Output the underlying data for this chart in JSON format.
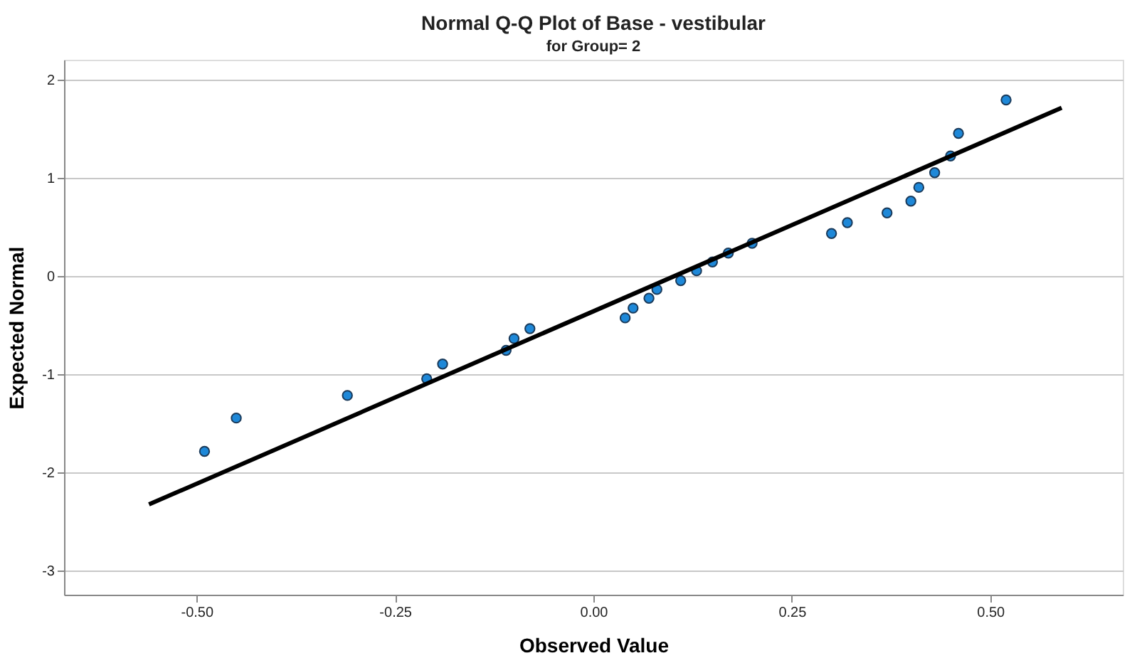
{
  "chart_data": {
    "type": "scatter",
    "title": "Normal Q-Q Plot of Base - vestibular",
    "subtitle": "for Group= 2",
    "xlabel": "Observed Value",
    "ylabel": "Expected Normal",
    "xlim": [
      -0.667,
      0.667
    ],
    "ylim": [
      -3.25,
      2.2
    ],
    "xticks": [
      {
        "value": -0.5,
        "label": "-0.50"
      },
      {
        "value": -0.25,
        "label": "-0.25"
      },
      {
        "value": 0,
        "label": "0.00"
      },
      {
        "value": 0.25,
        "label": "0.25"
      },
      {
        "value": 0.5,
        "label": "0.50"
      }
    ],
    "yticks": [
      -3,
      -2,
      -1,
      0,
      1,
      2
    ],
    "grid": "y",
    "series": [
      {
        "marker": "circle",
        "color": "#1e88d8",
        "x": [
          -0.49,
          -0.45,
          -0.31,
          -0.21,
          -0.19,
          -0.11,
          -0.1,
          -0.08,
          0.04,
          0.05,
          0.07,
          0.08,
          0.11,
          0.13,
          0.15,
          0.17,
          0.2,
          0.3,
          0.32,
          0.37,
          0.4,
          0.41,
          0.43,
          0.45,
          0.46,
          0.52
        ],
        "values": [
          -1.79,
          -1.45,
          -1.22,
          -1.05,
          -0.9,
          -0.76,
          -0.64,
          -0.54,
          -0.43,
          -0.33,
          -0.23,
          -0.14,
          -0.05,
          0.05,
          0.14,
          0.23,
          0.33,
          0.43,
          0.54,
          0.64,
          0.76,
          0.9,
          1.05,
          1.22,
          1.45,
          1.79
        ]
      },
      {
        "type": "line",
        "color": "#000000",
        "line_style": "solid",
        "x": [
          -0.56,
          0.59
        ],
        "values": [
          -2.33,
          1.71
        ]
      }
    ]
  }
}
